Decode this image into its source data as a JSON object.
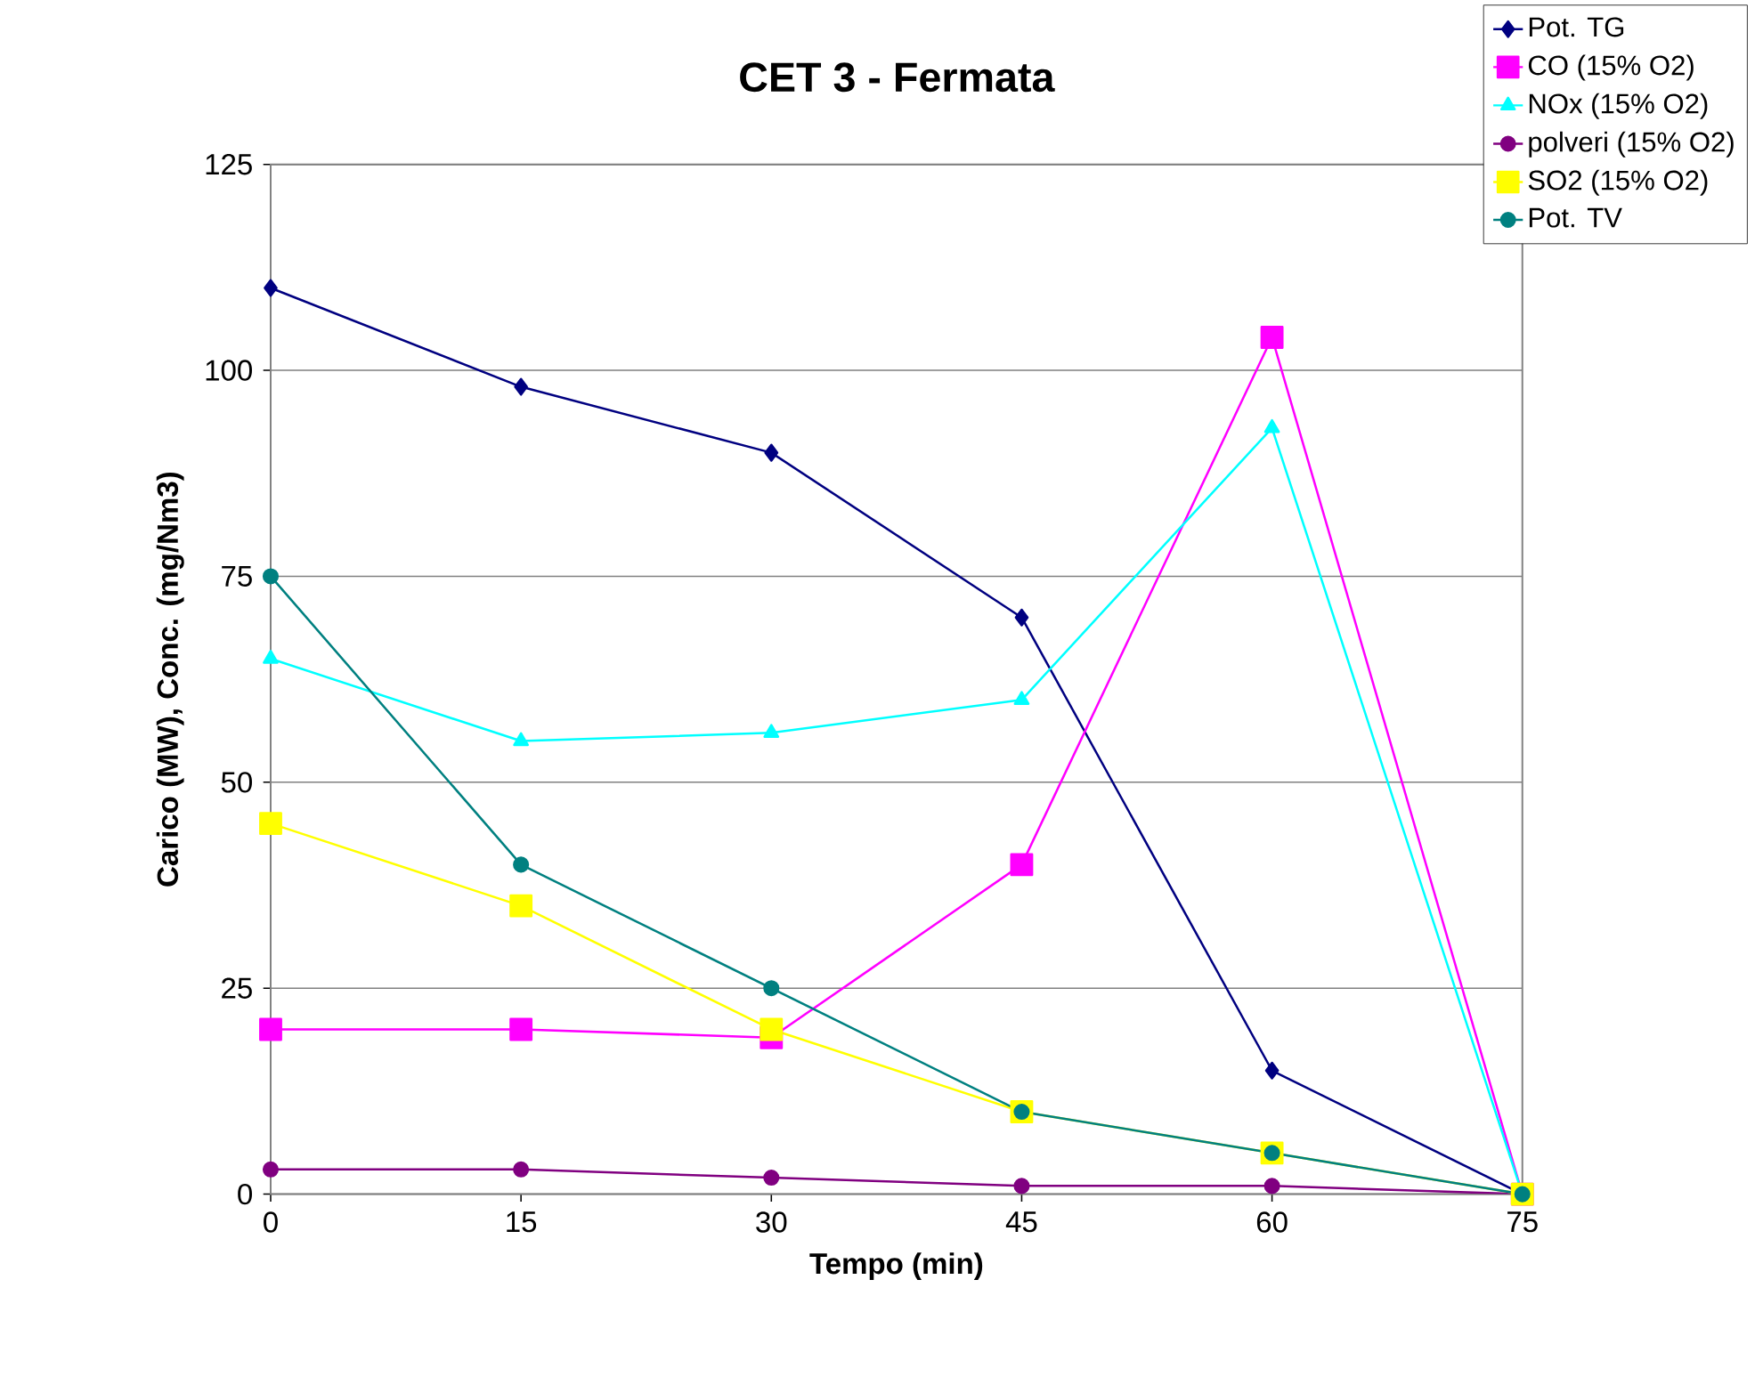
{
  "chart_data": {
    "type": "line",
    "title": "CET 3 - Fermata",
    "xlabel": "Tempo (min)",
    "ylabel": "Carico (MW), Conc. (mg/Nm3)",
    "x": [
      0,
      15,
      30,
      45,
      60,
      75
    ],
    "xlim": [
      0,
      75
    ],
    "xticks": [
      0,
      15,
      30,
      45,
      60,
      75
    ],
    "ylim": [
      0,
      125
    ],
    "yticks": [
      0,
      25,
      50,
      75,
      100,
      125
    ],
    "grid": "y",
    "legend": "top right",
    "line_style": "solid",
    "series": [
      {
        "name": "Pot. TG",
        "color": "#000080",
        "marker": "diamond",
        "values": [
          110,
          98,
          90,
          70,
          15,
          0
        ]
      },
      {
        "name": "CO (15% O2)",
        "color": "#ff00ff",
        "marker": "square",
        "values": [
          20,
          20,
          19,
          40,
          104,
          0
        ]
      },
      {
        "name": "NOx (15% O2)",
        "color": "#00ffff",
        "marker": "triangle",
        "values": [
          65,
          55,
          56,
          60,
          93,
          0
        ]
      },
      {
        "name": "polveri (15% O2)",
        "color": "#800080",
        "marker": "circle",
        "values": [
          3,
          3,
          2,
          1,
          1,
          0
        ]
      },
      {
        "name": "SO2 (15% O2)",
        "color": "#ffff00",
        "marker": "square",
        "values": [
          45,
          35,
          20,
          10,
          5,
          0
        ]
      },
      {
        "name": "Pot. TV",
        "color": "#008080",
        "marker": "circle",
        "values": [
          75,
          40,
          25,
          10,
          5,
          0
        ]
      }
    ]
  }
}
